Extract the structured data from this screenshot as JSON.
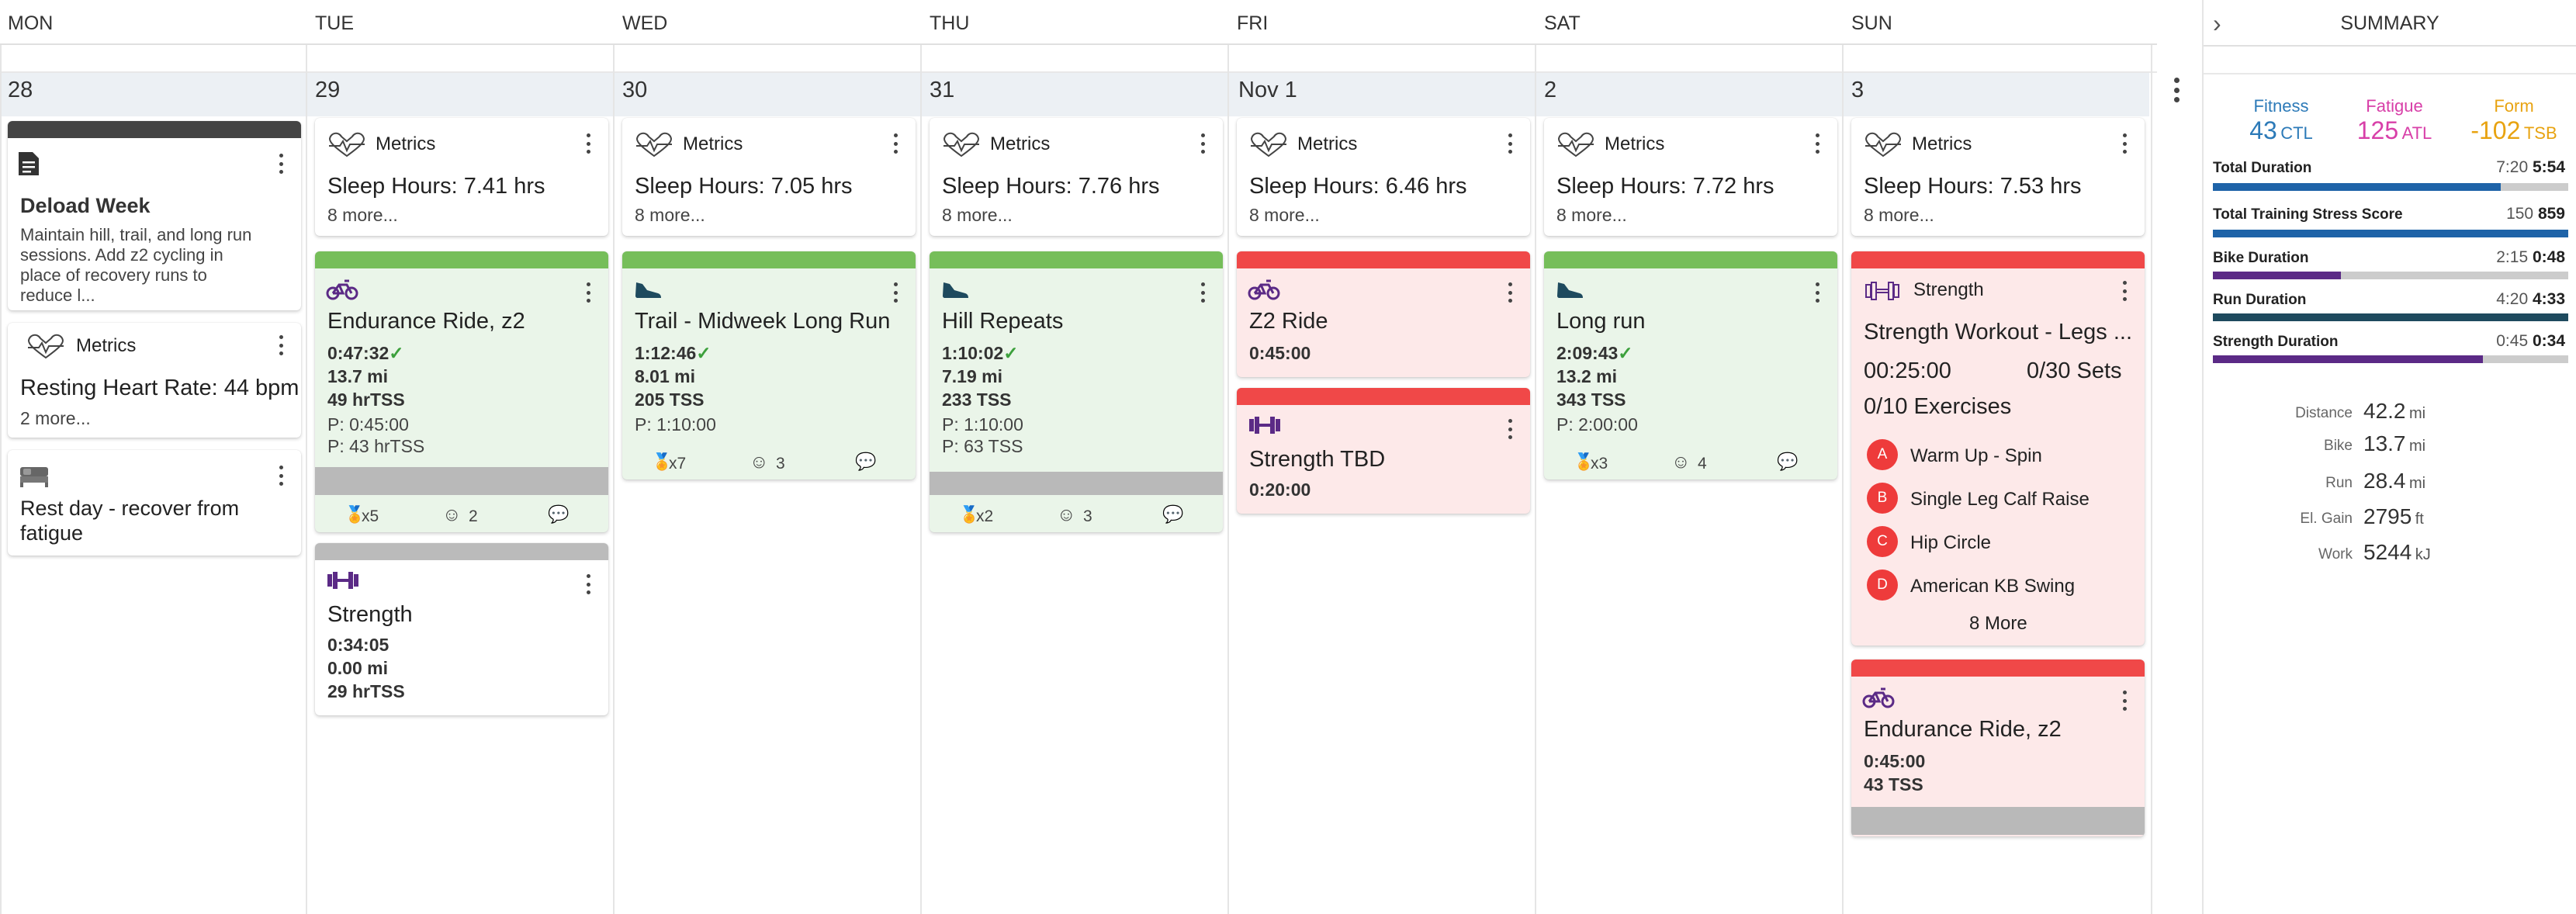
{
  "days": [
    {
      "name": "MON",
      "date": "28"
    },
    {
      "name": "TUE",
      "date": "29"
    },
    {
      "name": "WED",
      "date": "30"
    },
    {
      "name": "THU",
      "date": "31"
    },
    {
      "name": "FRI",
      "date": "Nov 1"
    },
    {
      "name": "SAT",
      "date": "2"
    },
    {
      "name": "SUN",
      "date": "3"
    }
  ],
  "summary": {
    "title": "SUMMARY",
    "fitness": {
      "label": "Fitness",
      "value": "43",
      "unit": "CTL"
    },
    "fatigue": {
      "label": "Fatigue",
      "value": "125",
      "unit": "ATL"
    },
    "form": {
      "label": "Form",
      "value": "-102",
      "unit": "TSB"
    },
    "rows": [
      {
        "label": "Total Duration",
        "planned": "7:20",
        "actual": "5:54",
        "fill": 0.81,
        "color": "#1e63a8"
      },
      {
        "label": "Total Training Stress Score",
        "planned": "150",
        "actual": "859",
        "fill": 1.0,
        "color": "#1e63a8"
      },
      {
        "label": "Bike Duration",
        "planned": "2:15",
        "actual": "0:48",
        "fill": 0.36,
        "color": "#5b2a86"
      },
      {
        "label": "Run Duration",
        "planned": "4:20",
        "actual": "4:33",
        "fill": 1.0,
        "color": "#1e4a5e"
      },
      {
        "label": "Strength Duration",
        "planned": "0:45",
        "actual": "0:34",
        "fill": 0.76,
        "color": "#5b2a86"
      }
    ],
    "totals": [
      {
        "label": "Distance",
        "value": "42.2",
        "unit": "mi"
      },
      {
        "label": "Bike",
        "value": "13.7",
        "unit": "mi"
      },
      {
        "label": "Run",
        "value": "28.4",
        "unit": "mi"
      },
      {
        "label": "El. Gain",
        "value": "2795",
        "unit": "ft"
      },
      {
        "label": "Work",
        "value": "5244",
        "unit": "kJ"
      }
    ]
  },
  "mon": {
    "note": {
      "title": "Deload Week",
      "body": [
        "Maintain hill, trail, and long run",
        "sessions. Add z2 cycling in",
        "place of recovery runs to",
        "reduce l..."
      ]
    },
    "metrics": {
      "label": "Metrics",
      "line": "Resting Heart Rate: 44 bpm",
      "more": "2 more..."
    },
    "rest": {
      "line1": "Rest day - recover from",
      "line2": "fatigue"
    }
  },
  "metrics": {
    "label": "Metrics",
    "more": "8 more...",
    "tue": "Sleep Hours: 7.41 hrs",
    "wed": "Sleep Hours: 7.05 hrs",
    "thu": "Sleep Hours: 7.76 hrs",
    "fri": "Sleep Hours: 6.46 hrs",
    "sat": "Sleep Hours: 7.72 hrs",
    "sun": "Sleep Hours: 7.53 hrs"
  },
  "tue": {
    "w1": {
      "title": "Endurance Ride, z2",
      "dur": "0:47:32",
      "dist": "13.7 mi",
      "tss": "49 hrTSS",
      "p1": "P: 0:45:00",
      "p2": "P: 43 hrTSS",
      "medals": "x5",
      "smiles": "2"
    },
    "w2": {
      "title": "Strength",
      "dur": "0:34:05",
      "dist": "0.00 mi",
      "tss": "29 hrTSS"
    }
  },
  "wed": {
    "w1": {
      "title": "Trail - Midweek Long Run",
      "dur": "1:12:46",
      "dist": "8.01 mi",
      "tss": "205 TSS",
      "p1": "P: 1:10:00",
      "medals": "x7",
      "smiles": "3"
    }
  },
  "thu": {
    "w1": {
      "title": "Hill Repeats",
      "dur": "1:10:02",
      "dist": "7.19 mi",
      "tss": "233 TSS",
      "p1": "P: 1:10:00",
      "p2": "P: 63 TSS",
      "medals": "x2",
      "smiles": "3"
    }
  },
  "fri": {
    "w1": {
      "title": "Z2 Ride",
      "dur": "0:45:00"
    },
    "w2": {
      "title": "Strength TBD",
      "dur": "0:20:00"
    }
  },
  "sat": {
    "w1": {
      "title": "Long run",
      "dur": "2:09:43",
      "dist": "13.2 mi",
      "tss": "343 TSS",
      "p1": "P: 2:00:00",
      "medals": "x3",
      "smiles": "4"
    }
  },
  "sun": {
    "w1": {
      "label": "Strength",
      "title": "Strength Workout - Legs ...",
      "dur": "00:25:00",
      "sets": "0/30 Sets",
      "exercises": "0/10 Exercises",
      "items": [
        {
          "letter": "A",
          "name": "Warm Up - Spin"
        },
        {
          "letter": "B",
          "name": "Single Leg Calf Raise"
        },
        {
          "letter": "C",
          "name": "Hip Circle"
        },
        {
          "letter": "D",
          "name": "American KB Swing"
        }
      ],
      "more": "8 More"
    },
    "w2": {
      "title": "Endurance Ride, z2",
      "dur": "0:45:00",
      "tss": "43 TSS"
    }
  }
}
